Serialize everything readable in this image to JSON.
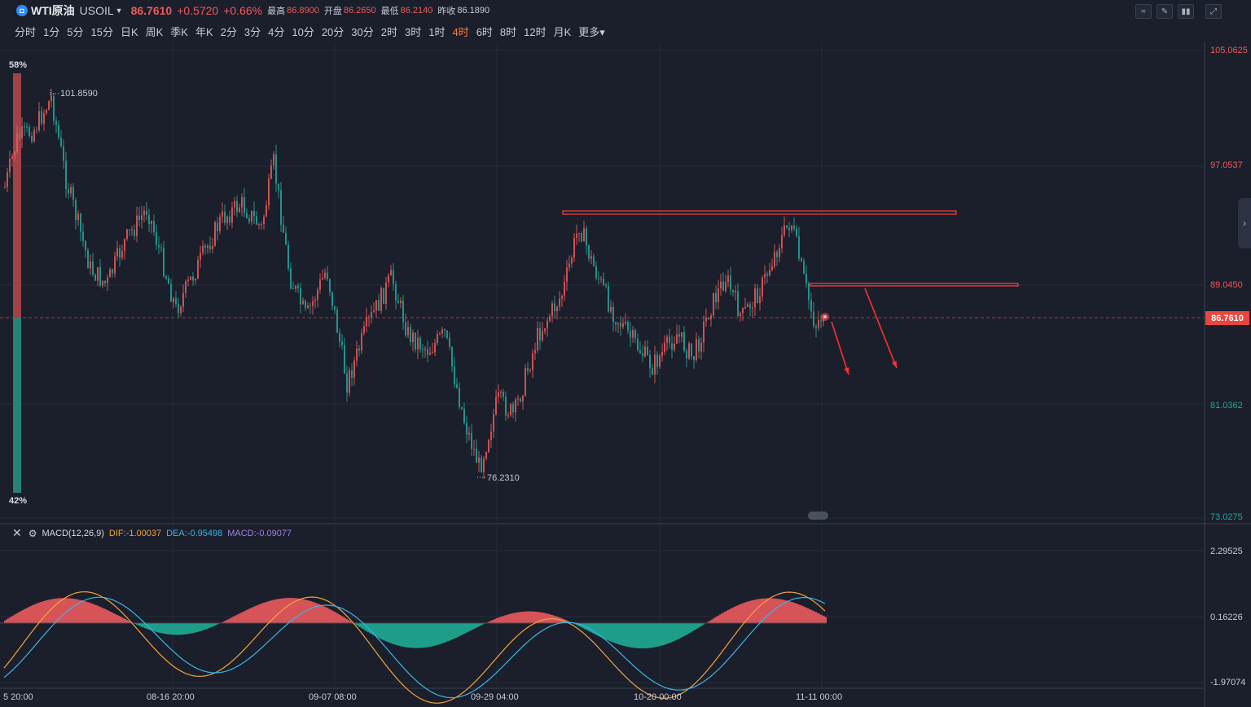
{
  "header": {
    "logo_glyph": "◘",
    "symbol_name": "WTI原油",
    "symbol_code": "USOIL",
    "price": "86.7610",
    "change": "+0.5720",
    "change_pct": "+0.66%",
    "high_label": "最高",
    "high": "86.8900",
    "open_label": "开盘",
    "open": "86.2650",
    "low_label": "最低",
    "low": "86.2140",
    "prev_close_label": "昨收",
    "prev_close": "86.1890"
  },
  "periods": [
    "分时",
    "1分",
    "5分",
    "15分",
    "日K",
    "周K",
    "季K",
    "年K",
    "2分",
    "3分",
    "4分",
    "10分",
    "20分",
    "30分",
    "2时",
    "3时",
    "1时",
    "4时",
    "6时",
    "8时",
    "12时",
    "月K",
    "更多"
  ],
  "active_period": "4时",
  "tools": [
    {
      "name": "indicator-tool-icon",
      "glyph": "≈"
    },
    {
      "name": "draw-tool-icon",
      "glyph": "✎"
    },
    {
      "name": "candle-style-icon",
      "glyph": "▮▮"
    },
    {
      "name": "fullscreen-icon",
      "glyph": "⤢"
    }
  ],
  "price_axis": [
    "105.0625",
    "97.0537",
    "89.0450",
    "86.7610",
    "81.0362",
    "73.0275"
  ],
  "time_axis": [
    "5 20:00",
    "08-16 20:00",
    "09-07 08:00",
    "09-29 04:00",
    "10-20 00:00",
    "11-11 00:00"
  ],
  "sentiment": {
    "top_pct": "58%",
    "bottom_pct": "42%",
    "bull": 0.58,
    "bear": 0.42
  },
  "annotations": {
    "high_marker": "101.8590",
    "low_marker": "76.2310"
  },
  "macd": {
    "name": "MACD(12,26,9)",
    "dif": "DIF:-1.00037",
    "dea": "DEA:-0.95498",
    "macd": "MACD:-0.09077",
    "axis": [
      "2.29525",
      "0.16226",
      "-1.97074"
    ]
  },
  "colors": {
    "up": "#ee5a5a",
    "down": "#26a69a",
    "bg": "#1b1f2b",
    "active": "#ff7a3d",
    "dif": "#f2a33a",
    "dea": "#3cb4e6",
    "macd": "#a97fe8"
  }
}
